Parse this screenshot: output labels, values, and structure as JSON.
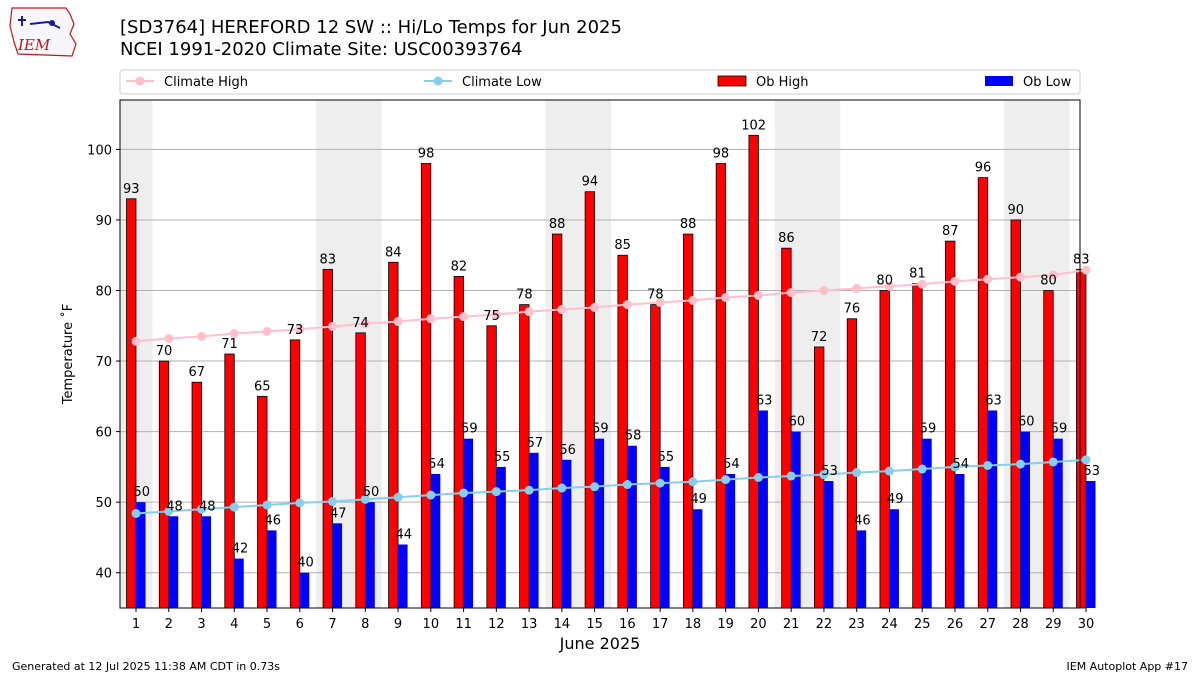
{
  "header": {
    "title_line1": "[SD3764] HEREFORD 12 SW :: Hi/Lo Temps for Jun 2025",
    "title_line2": "NCEI 1991-2020 Climate Site: USC00393764",
    "logo_text": "IEM"
  },
  "footer": {
    "generated": "Generated at 12 Jul 2025 11:38 AM CDT in 0.73s",
    "app": "IEM Autoplot App #17"
  },
  "chart_data": {
    "type": "bar",
    "xlabel": "June 2025",
    "ylabel": "Temperature ˚F",
    "ylim": [
      35,
      107
    ],
    "yticks": [
      40,
      50,
      60,
      70,
      80,
      90,
      100
    ],
    "grid": true,
    "legend_placement": "top",
    "categories": [
      "1",
      "2",
      "3",
      "4",
      "5",
      "6",
      "7",
      "8",
      "9",
      "10",
      "11",
      "12",
      "13",
      "14",
      "15",
      "16",
      "17",
      "18",
      "19",
      "20",
      "21",
      "22",
      "23",
      "24",
      "25",
      "26",
      "27",
      "28",
      "29",
      "30"
    ],
    "weekend_shaded_days": [
      1,
      7,
      8,
      14,
      15,
      21,
      22,
      28,
      29
    ],
    "series": [
      {
        "name": "Climate High",
        "kind": "line",
        "color": "#ffc0cb",
        "values": [
          72.8,
          73.2,
          73.5,
          73.9,
          74.2,
          74.5,
          74.9,
          75.3,
          75.6,
          76.0,
          76.3,
          76.6,
          77.0,
          77.3,
          77.6,
          78.0,
          78.3,
          78.6,
          79.0,
          79.3,
          79.7,
          80.0,
          80.3,
          80.6,
          80.9,
          81.3,
          81.6,
          81.9,
          82.2,
          82.9
        ]
      },
      {
        "name": "Climate Low",
        "kind": "line",
        "color": "#87ceeb",
        "values": [
          48.4,
          48.7,
          49.0,
          49.3,
          49.6,
          49.9,
          50.1,
          50.4,
          50.7,
          51.0,
          51.3,
          51.5,
          51.7,
          52.0,
          52.2,
          52.5,
          52.7,
          52.9,
          53.2,
          53.5,
          53.7,
          53.9,
          54.2,
          54.4,
          54.7,
          55.0,
          55.2,
          55.4,
          55.7,
          56.0
        ]
      },
      {
        "name": "Ob High",
        "kind": "bar",
        "color": "#ff0000",
        "values": [
          93,
          70,
          67,
          71,
          65,
          73,
          83,
          74,
          84,
          98,
          82,
          75,
          78,
          88,
          94,
          85,
          78,
          88,
          98,
          102,
          86,
          72,
          76,
          80,
          81,
          87,
          96,
          90,
          80,
          83
        ]
      },
      {
        "name": "Ob Low",
        "kind": "bar",
        "color": "#0000ff",
        "values": [
          50,
          48,
          48,
          42,
          46,
          40,
          47,
          50,
          44,
          54,
          59,
          55,
          57,
          56,
          59,
          58,
          55,
          49,
          54,
          63,
          60,
          53,
          46,
          49,
          59,
          54,
          63,
          60,
          59,
          53
        ]
      }
    ]
  }
}
